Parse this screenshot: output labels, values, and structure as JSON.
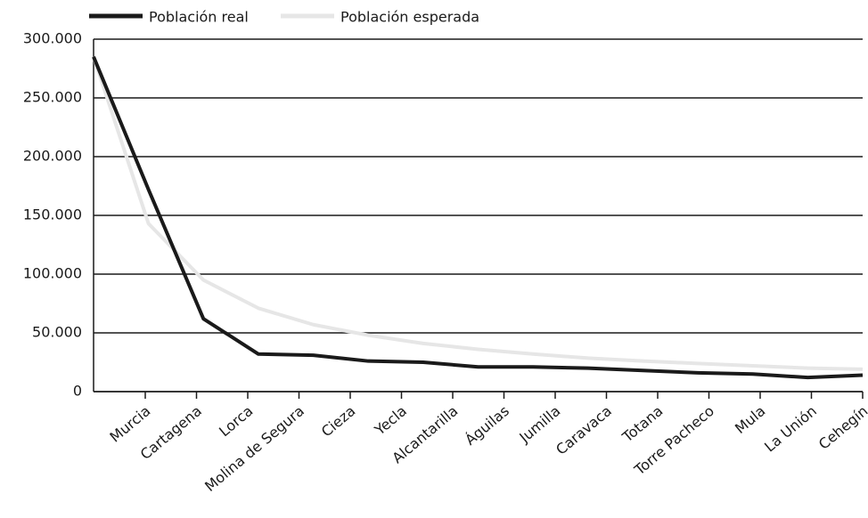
{
  "chart_data": {
    "type": "line",
    "categories": [
      "Murcia",
      "Cartagena",
      "Lorca",
      "Molina de Segura",
      "Cieza",
      "Yecla",
      "Alcantarilla",
      "Águilas",
      "Jumilla",
      "Caravaca",
      "Totana",
      "Torre Pacheco",
      "Mula",
      "La Unión",
      "Cehegín"
    ],
    "series": [
      {
        "name": "Población real",
        "color": "#1a1a1a",
        "values": [
          285000,
          172000,
          62000,
          32000,
          31000,
          26000,
          25000,
          21000,
          21000,
          20000,
          18000,
          16000,
          15000,
          12000,
          14000
        ]
      },
      {
        "name": "Población esperada",
        "color": "#e6e6e6",
        "values": [
          285000,
          143000,
          95000,
          71000,
          57000,
          48000,
          41000,
          36000,
          32000,
          28500,
          26000,
          24000,
          22000,
          20000,
          19000
        ]
      }
    ],
    "ylim": [
      0,
      300000
    ],
    "yticks": [
      0,
      {
        "value": 50000,
        "label": "50.000"
      },
      {
        "value": 100000,
        "label": "100.000"
      },
      {
        "value": 150000,
        "label": "150.000"
      },
      {
        "value": 200000,
        "label": "200.000"
      },
      {
        "value": 250000,
        "label": "250.000"
      },
      {
        "value": 300000,
        "label": "300.000"
      }
    ],
    "grid": true,
    "legend": "top"
  }
}
